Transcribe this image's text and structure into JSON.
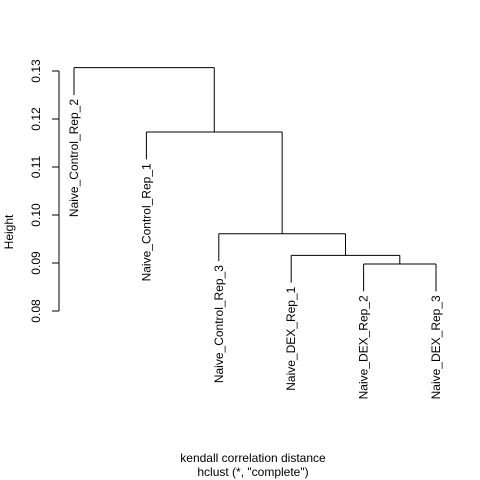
{
  "chart_data": {
    "type": "dendrogram",
    "ylabel": "Height",
    "xlabel": "kendall correlation distance",
    "sub": "hclust (*, \"complete\")",
    "ylim": [
      0.08,
      0.13
    ],
    "y_ticks": [
      0.08,
      0.09,
      0.1,
      0.11,
      0.12,
      0.13
    ],
    "y_tick_labels": [
      "0.08",
      "0.09",
      "0.10",
      "0.11",
      "0.12",
      "0.13"
    ],
    "leaves": [
      {
        "label": "Naive_Control_Rep_2"
      },
      {
        "label": "Naive_Control_Rep_1"
      },
      {
        "label": "Naive_Control_Rep_3"
      },
      {
        "label": "Naive_DEX_Rep_1"
      },
      {
        "label": "Naive_DEX_Rep_2"
      },
      {
        "label": "Naive_DEX_Rep_3"
      }
    ],
    "merges": [
      {
        "left": "leaf:4",
        "right": "leaf:5",
        "height": 0.0898
      },
      {
        "left": "leaf:3",
        "right": "merge:0",
        "height": 0.0916
      },
      {
        "left": "leaf:2",
        "right": "merge:1",
        "height": 0.0961
      },
      {
        "left": "leaf:1",
        "right": "merge:2",
        "height": 0.1173
      },
      {
        "left": "leaf:0",
        "right": "merge:3",
        "height": 0.1307
      }
    ]
  }
}
